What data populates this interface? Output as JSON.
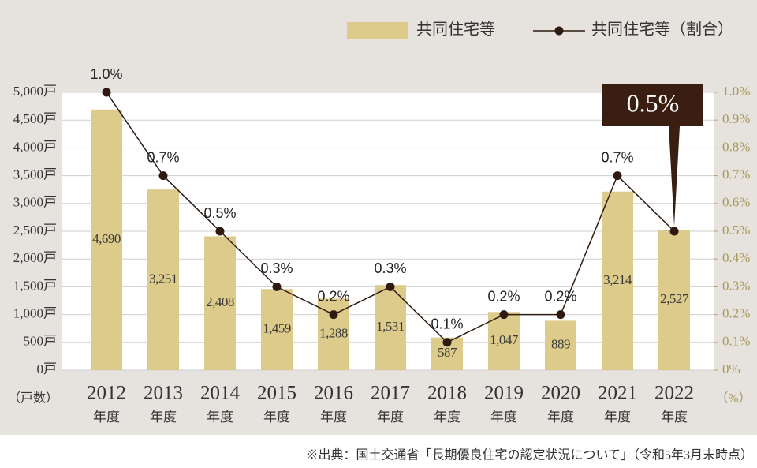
{
  "chart_data": {
    "type": "bar_line",
    "categories": [
      "2012",
      "2013",
      "2014",
      "2015",
      "2016",
      "2017",
      "2018",
      "2019",
      "2020",
      "2021",
      "2022"
    ],
    "category_suffix": "年度",
    "y_unit": "（戸数）",
    "y2_unit": "（%）",
    "series": [
      {
        "name": "共同住宅等",
        "type": "bar",
        "color": "#dccb8b",
        "values": [
          4690,
          3251,
          2408,
          1459,
          1288,
          1531,
          587,
          1047,
          889,
          3214,
          2527
        ],
        "value_labels": [
          "4,690",
          "3,251",
          "2,408",
          "1,459",
          "1,288",
          "1,531",
          "587",
          "1,047",
          "889",
          "3,214",
          "2,527"
        ]
      },
      {
        "name": "共同住宅等（割合）",
        "type": "line",
        "axis": "y2",
        "color": "#2e1a10",
        "values": [
          1.0,
          0.7,
          0.5,
          0.3,
          0.2,
          0.3,
          0.1,
          0.2,
          0.2,
          0.7,
          0.5
        ],
        "value_labels": [
          "1.0%",
          "0.7%",
          "0.5%",
          "0.3%",
          "0.2%",
          "0.3%",
          "0.1%",
          "0.2%",
          "0.2%",
          "0.7%",
          "0.5%"
        ]
      }
    ],
    "ylim": [
      0,
      5000
    ],
    "yticks": [
      {
        "value": 0,
        "label": "0戸"
      },
      {
        "value": 500,
        "label": "500戸"
      },
      {
        "value": 1000,
        "label": "1,000戸"
      },
      {
        "value": 1500,
        "label": "1,500戸"
      },
      {
        "value": 2000,
        "label": "2,000戸"
      },
      {
        "value": 2500,
        "label": "2,500戸"
      },
      {
        "value": 3000,
        "label": "3,000戸"
      },
      {
        "value": 3500,
        "label": "3,500戸"
      },
      {
        "value": 4000,
        "label": "4,000戸"
      },
      {
        "value": 4500,
        "label": "4,500戸"
      },
      {
        "value": 5000,
        "label": "5,000戸"
      }
    ],
    "y2lim": [
      0,
      1.0
    ],
    "y2ticks": [
      {
        "value": 0,
        "label": "0%"
      },
      {
        "value": 0.1,
        "label": "0.1%"
      },
      {
        "value": 0.2,
        "label": "0.2%"
      },
      {
        "value": 0.3,
        "label": "0.3%"
      },
      {
        "value": 0.4,
        "label": "0.4%"
      },
      {
        "value": 0.5,
        "label": "0.5%"
      },
      {
        "value": 0.6,
        "label": "0.6%"
      },
      {
        "value": 0.7,
        "label": "0.7%"
      },
      {
        "value": 0.8,
        "label": "0.8%"
      },
      {
        "value": 0.9,
        "label": "0.9%"
      },
      {
        "value": 1.0,
        "label": "1.0%"
      }
    ],
    "grid": true,
    "source": "※出典：国土交通省「長期優良住宅の認定状況について」（令和5年3月末時点）"
  }
}
